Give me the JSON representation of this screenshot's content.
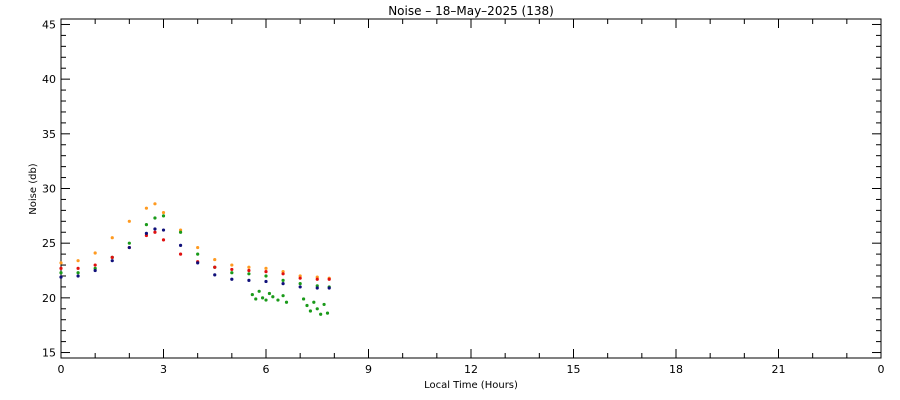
{
  "chart_data": {
    "type": "scatter",
    "title": "Noise  –  18–May–2025 (138)",
    "xlabel": "Local Time (Hours)",
    "ylabel": "Noise (db)",
    "xlim": [
      0,
      24
    ],
    "ylim": [
      14.5,
      45.5
    ],
    "x_ticks": [
      "0",
      "3",
      "6",
      "9",
      "12",
      "15",
      "18",
      "21",
      "0"
    ],
    "y_ticks": [
      "15",
      "20",
      "25",
      "30",
      "35",
      "40",
      "45"
    ],
    "grid": false,
    "legend": "none",
    "series": [
      {
        "color": "#ff9a20",
        "x": [
          0.0,
          0.5,
          1.0,
          1.5,
          2.0,
          2.5,
          2.75,
          3.0,
          3.5,
          4.0,
          4.5,
          5.0,
          5.5,
          6.0,
          6.5,
          7.0,
          7.5,
          7.85
        ],
        "y": [
          23.2,
          23.4,
          24.1,
          25.5,
          27.0,
          28.2,
          28.6,
          27.8,
          26.2,
          24.6,
          23.5,
          23.0,
          22.8,
          22.7,
          22.4,
          22.0,
          21.9,
          21.8
        ]
      },
      {
        "color": "#1a9a1a",
        "x": [
          0.0,
          0.5,
          1.0,
          1.5,
          2.0,
          2.5,
          2.75,
          3.0,
          3.5,
          4.0,
          4.5,
          5.0,
          5.5,
          6.0,
          6.5,
          7.0,
          7.5,
          7.85
        ],
        "y": [
          22.3,
          22.3,
          22.7,
          23.7,
          25.0,
          26.7,
          27.3,
          27.5,
          26.0,
          24.0,
          22.8,
          22.3,
          22.2,
          22.0,
          21.6,
          21.3,
          21.1,
          21.0
        ]
      },
      {
        "color": "#1a9a1a",
        "x": [
          5.6,
          5.7,
          5.8,
          5.9,
          6.0,
          6.1,
          6.2,
          6.35,
          6.5,
          6.6,
          7.1,
          7.2,
          7.3,
          7.4,
          7.5,
          7.6,
          7.7,
          7.8
        ],
        "y": [
          20.3,
          19.9,
          20.6,
          20.0,
          19.8,
          20.4,
          20.1,
          19.8,
          20.2,
          19.6,
          19.9,
          19.3,
          18.8,
          19.6,
          19.0,
          18.5,
          19.4,
          18.6
        ]
      },
      {
        "color": "#e01010",
        "x": [
          0.0,
          0.5,
          1.0,
          1.5,
          2.0,
          2.5,
          2.75,
          3.0,
          3.5,
          4.0,
          4.5,
          5.0,
          5.5,
          6.0,
          6.5,
          7.0,
          7.5,
          7.85
        ],
        "y": [
          22.7,
          22.7,
          23.0,
          23.7,
          24.6,
          25.7,
          26.0,
          25.3,
          24.0,
          23.3,
          22.8,
          22.6,
          22.5,
          22.4,
          22.2,
          21.8,
          21.7,
          21.7
        ]
      },
      {
        "color": "#10107a",
        "x": [
          0.0,
          0.5,
          1.0,
          1.5,
          2.0,
          2.5,
          2.75,
          3.0,
          3.5,
          4.0,
          4.5,
          5.0,
          5.5,
          6.0,
          6.5,
          7.0,
          7.5,
          7.85
        ],
        "y": [
          21.9,
          22.0,
          22.5,
          23.4,
          24.6,
          25.9,
          26.3,
          26.2,
          24.8,
          23.2,
          22.1,
          21.7,
          21.6,
          21.5,
          21.3,
          21.0,
          20.9,
          20.9
        ]
      }
    ]
  }
}
